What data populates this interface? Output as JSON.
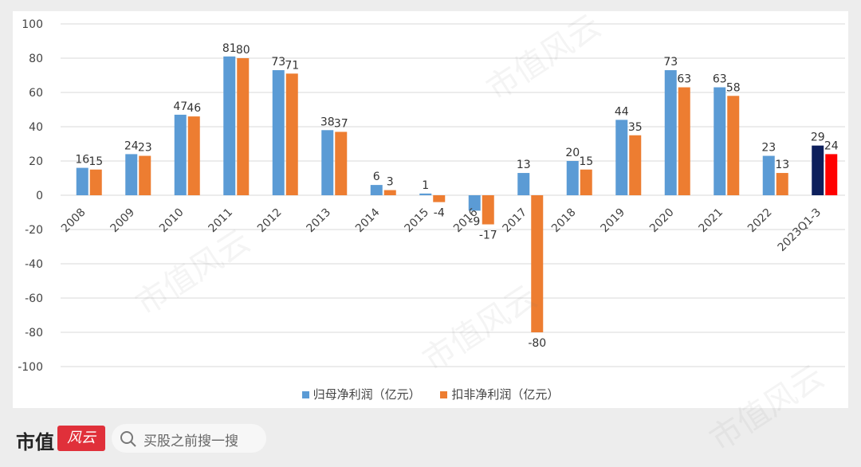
{
  "chart_data": {
    "type": "bar",
    "categories": [
      "2008",
      "2009",
      "2010",
      "2011",
      "2012",
      "2013",
      "2014",
      "2015",
      "2016",
      "2017",
      "2018",
      "2019",
      "2020",
      "2021",
      "2022",
      "2023Q1-3"
    ],
    "series": [
      {
        "name": "归母净利润（亿元）",
        "color": "#5b9bd5",
        "values": [
          16,
          24,
          47,
          81,
          73,
          38,
          6,
          1,
          -9,
          13,
          20,
          44,
          73,
          63,
          23,
          29
        ],
        "labels": [
          "16",
          "24",
          "47",
          "81",
          "73",
          "38",
          "6",
          "1",
          "-9",
          "13",
          "20",
          "44",
          "73",
          "63",
          "23",
          "29"
        ]
      },
      {
        "name": "扣非净利润（亿元）",
        "color": "#ed7d31",
        "values": [
          15,
          23,
          46,
          80,
          71,
          37,
          3,
          -4,
          -17,
          -80,
          15,
          35,
          63,
          58,
          13,
          24
        ],
        "labels": [
          "15",
          "23",
          "46",
          "80",
          "71",
          "37",
          "3",
          "-4",
          "-17",
          "-80",
          "15",
          "35",
          "63",
          "58",
          "13",
          "24"
        ]
      }
    ],
    "highlight": {
      "category": "2023Q1-3",
      "colors": [
        "#0d1f5c",
        "#ff0000"
      ]
    },
    "ylim": [
      -100,
      100
    ],
    "yticks": [
      "100",
      "80",
      "60",
      "40",
      "20",
      "0",
      "-20",
      "-40",
      "-60",
      "-80",
      "-100"
    ],
    "ytick_values": [
      100,
      80,
      60,
      40,
      20,
      0,
      -20,
      -40,
      -60,
      -80,
      -100
    ],
    "grid": true,
    "legend_position": "bottom"
  },
  "footer": {
    "brand": "市值",
    "logo_text": "风云",
    "search_placeholder": "买股之前搜一搜"
  },
  "watermark_text": "市值风云"
}
